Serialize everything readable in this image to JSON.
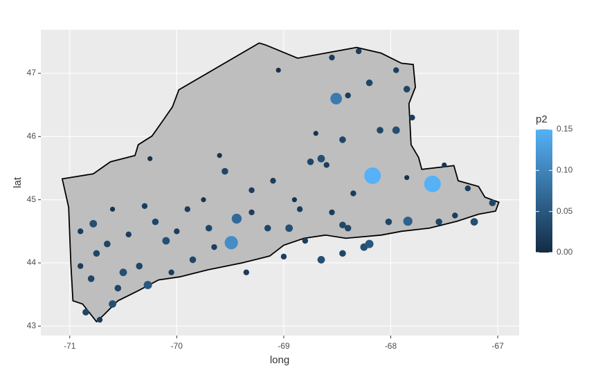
{
  "chart_data": {
    "type": "scatter",
    "x_label": "long",
    "y_label": "lat",
    "xlim": [
      -71.27,
      -66.8
    ],
    "ylim": [
      42.85,
      47.69
    ],
    "xticks": [
      -71,
      -70,
      -69,
      -68,
      -67
    ],
    "yticks": [
      43,
      44,
      45,
      46,
      47
    ],
    "grid": true,
    "region": {
      "fill": "#bebebe",
      "long": [
        -71.07,
        -70.78,
        -70.62,
        -70.39,
        -70.36,
        -70.23,
        -70.13,
        -70.04,
        -69.98,
        -69.23,
        -69.17,
        -68.87,
        -68.61,
        -68.32,
        -68.09,
        -67.9,
        -67.79,
        -67.77,
        -67.83,
        -67.81,
        -67.74,
        -67.71,
        -67.41,
        -67.37,
        -67.18,
        -67.12,
        -66.99,
        -67.02,
        -67.18,
        -67.38,
        -67.64,
        -67.9,
        -68.09,
        -68.42,
        -68.61,
        -68.81,
        -69.0,
        -69.13,
        -69.39,
        -69.71,
        -69.97,
        -70.17,
        -70.36,
        -70.55,
        -70.68,
        -70.75,
        -70.88,
        -70.97,
        -70.99,
        -71.01
      ],
      "lat": [
        45.33,
        45.41,
        45.6,
        45.7,
        45.87,
        46.01,
        46.25,
        46.47,
        46.74,
        47.48,
        47.45,
        47.24,
        47.32,
        47.41,
        47.32,
        47.16,
        47.14,
        46.78,
        46.52,
        45.87,
        45.67,
        45.48,
        45.54,
        45.3,
        45.21,
        45.04,
        44.96,
        44.82,
        44.77,
        44.66,
        44.55,
        44.5,
        44.44,
        44.39,
        44.44,
        44.39,
        44.28,
        44.11,
        44.0,
        43.89,
        43.78,
        43.73,
        43.56,
        43.4,
        43.18,
        43.07,
        43.35,
        43.4,
        44.0,
        44.88
      ]
    },
    "x": [
      -68.51,
      -68.17,
      -67.61,
      -69.49,
      -69.44,
      -67.84,
      -70.78,
      -70.85,
      -70.72,
      -70.6,
      -70.55,
      -70.27,
      -70.9,
      -70.65,
      -70.45,
      -70.2,
      -70.1,
      -69.85,
      -69.65,
      -69.9,
      -69.75,
      -69.55,
      -69.3,
      -69.1,
      -68.95,
      -68.8,
      -68.65,
      -68.45,
      -68.25,
      -68.4,
      -68.75,
      -68.6,
      -68.45,
      -68.35,
      -68.1,
      -67.95,
      -68.2,
      -67.95,
      -67.85,
      -68.4,
      -68.55,
      -68.3,
      -67.8,
      -67.55,
      -67.4,
      -67.22,
      -67.05,
      -67.28,
      -67.85,
      -68.02,
      -68.55,
      -68.85,
      -69.15,
      -69.3,
      -69.7,
      -70.0,
      -70.3,
      -70.6,
      -70.9,
      -70.8,
      -70.35,
      -70.05,
      -69.35,
      -69.0,
      -68.9,
      -69.6,
      -70.25,
      -68.7,
      -69.05,
      -67.5,
      -68.65,
      -68.45,
      -68.2,
      -70.5,
      -70.75
    ],
    "y": [
      46.6,
      45.38,
      45.25,
      44.32,
      44.7,
      44.66,
      44.62,
      43.22,
      43.1,
      43.35,
      43.6,
      43.65,
      43.95,
      44.3,
      44.45,
      44.65,
      44.35,
      44.05,
      44.25,
      44.85,
      45.0,
      45.45,
      45.15,
      45.3,
      44.55,
      44.35,
      44.05,
      44.15,
      44.25,
      44.55,
      45.6,
      45.55,
      45.95,
      45.1,
      46.1,
      46.1,
      46.85,
      47.05,
      46.75,
      46.65,
      47.25,
      47.35,
      46.3,
      44.65,
      44.75,
      44.65,
      44.95,
      45.18,
      45.35,
      44.65,
      44.8,
      44.85,
      44.55,
      44.8,
      44.55,
      44.5,
      44.9,
      44.85,
      44.5,
      43.75,
      43.95,
      43.85,
      43.85,
      44.1,
      45.0,
      45.7,
      45.65,
      46.05,
      47.05,
      45.55,
      45.65,
      44.6,
      44.3,
      43.85,
      44.15
    ],
    "p2": [
      0.09,
      0.15,
      0.15,
      0.11,
      0.07,
      0.06,
      0.04,
      0.03,
      0.02,
      0.04,
      0.03,
      0.05,
      0.02,
      0.03,
      0.02,
      0.03,
      0.04,
      0.03,
      0.02,
      0.02,
      0.01,
      0.03,
      0.02,
      0.02,
      0.04,
      0.02,
      0.04,
      0.03,
      0.04,
      0.03,
      0.03,
      0.02,
      0.03,
      0.02,
      0.03,
      0.04,
      0.03,
      0.02,
      0.03,
      0.02,
      0.02,
      0.02,
      0.02,
      0.03,
      0.02,
      0.04,
      0.03,
      0.02,
      0.01,
      0.03,
      0.02,
      0.02,
      0.03,
      0.02,
      0.03,
      0.02,
      0.02,
      0.01,
      0.02,
      0.03,
      0.03,
      0.02,
      0.02,
      0.02,
      0.01,
      0.01,
      0.01,
      0.01,
      0.01,
      0.01,
      0.04,
      0.03,
      0.05,
      0.04,
      0.03
    ],
    "color_scale": {
      "title": "p2",
      "lim": [
        0,
        0.15
      ],
      "low": "#132b43",
      "high": "#56b1f7",
      "ticks": [
        {
          "value": 0,
          "label": "0.00"
        },
        0.05,
        {
          "value": 0.1,
          "label": "0.10"
        },
        0.15
      ]
    }
  }
}
